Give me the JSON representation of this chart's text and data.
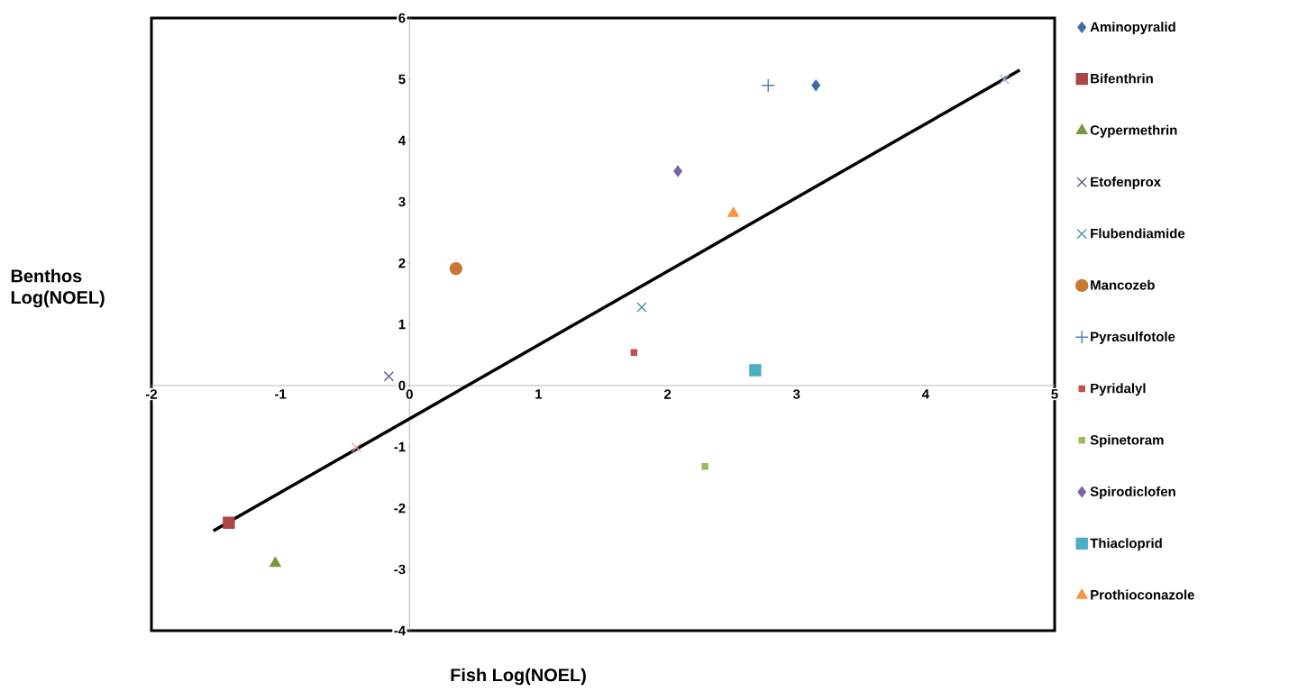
{
  "chart_data": {
    "type": "scatter",
    "xlabel": "Fish Log(NOEL)",
    "ylabel": "Benthos Log(NOEL)",
    "xlim": [
      -2,
      5
    ],
    "ylim": [
      -4,
      6
    ],
    "xticks": [
      -2,
      -1,
      0,
      1,
      2,
      3,
      4,
      5
    ],
    "yticks": [
      -4,
      -3,
      -2,
      -1,
      0,
      1,
      2,
      3,
      4,
      5,
      6
    ],
    "grid": false,
    "legend": "right",
    "series": [
      {
        "name": "Aminopyralid",
        "color": "#3f6aa8",
        "marker": "diamond",
        "x": [
          3.15
        ],
        "values": [
          4.9
        ]
      },
      {
        "name": "Bifenthrin",
        "color": "#aa4643",
        "marker": "square",
        "x": [
          -1.4
        ],
        "values": [
          -2.24
        ]
      },
      {
        "name": "Cypermethrin",
        "color": "#77993e",
        "marker": "triangle",
        "x": [
          -1.04
        ],
        "values": [
          -2.9
        ]
      },
      {
        "name": "Etofenprox",
        "color": "#6a548c",
        "marker": "cross",
        "x": [
          -0.16
        ],
        "values": [
          0.15
        ]
      },
      {
        "name": "Flubendiamide",
        "color": "#3d93a8",
        "marker": "cross",
        "x": [
          1.8
        ],
        "values": [
          1.28
        ]
      },
      {
        "name": "Mancozeb",
        "color": "#c97734",
        "marker": "circle",
        "x": [
          0.36
        ],
        "values": [
          1.91
        ]
      },
      {
        "name": "Pyrasulfotole",
        "color": "#4f81bd",
        "marker": "plus",
        "x": [
          2.78
        ],
        "values": [
          4.9
        ]
      },
      {
        "name": "Pyridalyl",
        "color": "#c0504d",
        "marker": "square",
        "x": [
          1.74
        ],
        "values": [
          0.54
        ]
      },
      {
        "name": "Spinetoram",
        "color": "#9bbb59",
        "marker": "square",
        "x": [
          2.29
        ],
        "values": [
          -1.32
        ]
      },
      {
        "name": "Spirodiclofen",
        "color": "#8064a2",
        "marker": "diamond",
        "x": [
          2.08
        ],
        "values": [
          3.5
        ]
      },
      {
        "name": "Thiacloprid",
        "color": "#4bacc6",
        "marker": "square",
        "x": [
          2.68
        ],
        "values": [
          0.25
        ]
      },
      {
        "name": "Prothioconazole",
        "color": "#f79646",
        "marker": "triangle",
        "x": [
          2.51
        ],
        "values": [
          2.81
        ]
      },
      {
        "color": "#e6a4a3",
        "marker": "cross",
        "x": [
          -0.41
        ],
        "values": [
          -1.01
        ]
      },
      {
        "color": "#a5b6e0",
        "marker": "cross",
        "x": [
          4.61
        ],
        "values": [
          5.0
        ]
      },
      {
        "type": "line",
        "color": "#000000",
        "marker": "none",
        "line_style": "solid",
        "x": [
          -1.52,
          4.73
        ],
        "values": [
          -2.37,
          5.15
        ]
      }
    ]
  }
}
